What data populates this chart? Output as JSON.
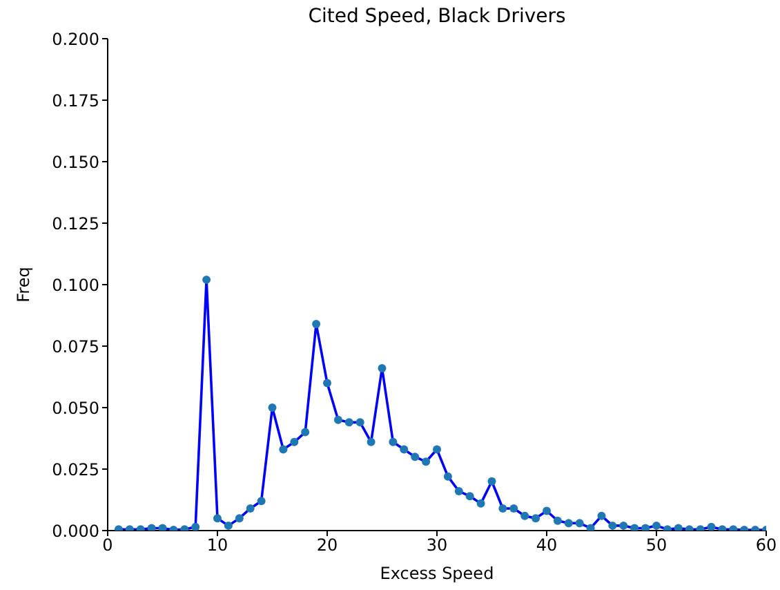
{
  "chart_data": {
    "type": "line",
    "title": "Cited Speed, Black Drivers",
    "xlabel": "Excess Speed",
    "ylabel": "Freq",
    "x": [
      1,
      2,
      3,
      4,
      5,
      6,
      7,
      8,
      9,
      10,
      11,
      12,
      13,
      14,
      15,
      16,
      17,
      18,
      19,
      20,
      21,
      22,
      23,
      24,
      25,
      26,
      27,
      28,
      29,
      30,
      31,
      32,
      33,
      34,
      35,
      36,
      37,
      38,
      39,
      40,
      41,
      42,
      43,
      44,
      45,
      46,
      47,
      48,
      49,
      50,
      51,
      52,
      53,
      54,
      55,
      56,
      57,
      58,
      59,
      60
    ],
    "series": [
      {
        "type": "scatter",
        "color": "#1f77b4",
        "marker": "circle",
        "values": [
          0.0005,
          0.0005,
          0.0005,
          0.001,
          0.001,
          0.0003,
          0.0005,
          0.0015,
          0.102,
          0.005,
          0.002,
          0.005,
          0.009,
          0.012,
          0.05,
          0.033,
          0.036,
          0.04,
          0.084,
          0.06,
          0.045,
          0.044,
          0.044,
          0.036,
          0.066,
          0.036,
          0.033,
          0.03,
          0.028,
          0.033,
          0.022,
          0.016,
          0.014,
          0.011,
          0.02,
          0.009,
          0.009,
          0.006,
          0.005,
          0.008,
          0.004,
          0.003,
          0.003,
          0.001,
          0.006,
          0.002,
          0.002,
          0.001,
          0.001,
          0.002,
          0.0005,
          0.001,
          0.0005,
          0.0005,
          0.0015,
          0.0005,
          0.0005,
          0.0003,
          0.0003,
          0.0003
        ]
      },
      {
        "color": "#0000ff",
        "line_style": "solid",
        "values": [
          0.0005,
          0.0005,
          0.0005,
          0.001,
          0.001,
          0.0003,
          0.0005,
          0.0015,
          0.102,
          0.005,
          0.002,
          0.005,
          0.009,
          0.012,
          0.05,
          0.033,
          0.036,
          0.04,
          0.084,
          0.06,
          0.045,
          0.044,
          0.044,
          0.036,
          0.066,
          0.036,
          0.033,
          0.03,
          0.028,
          0.033,
          0.022,
          0.016,
          0.014,
          0.011,
          0.02,
          0.009,
          0.009,
          0.006,
          0.005,
          0.008,
          0.004,
          0.003,
          0.003,
          0.001,
          0.006,
          0.002,
          0.002,
          0.001,
          0.001,
          0.002,
          0.0005,
          0.001,
          0.0005,
          0.0005,
          0.0015,
          0.0005,
          0.0005,
          0.0003,
          0.0003,
          0.0003
        ]
      }
    ],
    "xlim": [
      0,
      60
    ],
    "xticks": [
      0,
      10,
      20,
      30,
      40,
      50,
      60
    ],
    "ylim": [
      0,
      0.2
    ],
    "yticks": [
      {
        "value": 0,
        "label": "0.000"
      },
      {
        "value": 0.025,
        "label": "0.025"
      },
      {
        "value": 0.05,
        "label": "0.050"
      },
      {
        "value": 0.075,
        "label": "0.075"
      },
      {
        "value": 0.1,
        "label": "0.100"
      },
      {
        "value": 0.125,
        "label": "0.125"
      },
      {
        "value": 0.15,
        "label": "0.150"
      },
      {
        "value": 0.175,
        "label": "0.175"
      },
      {
        "value": 0.2,
        "label": "0.200"
      }
    ],
    "grid": false,
    "legend": false
  }
}
